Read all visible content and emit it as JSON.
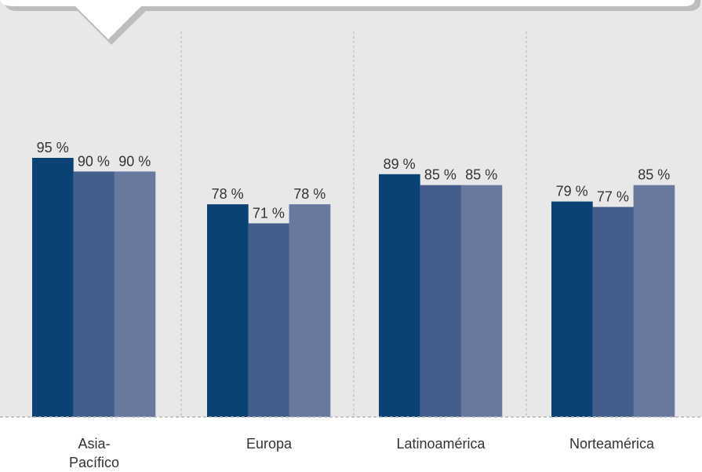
{
  "colors": {
    "panel": "#e8e8e8",
    "callout": "#ffffff",
    "callout_shadow": "#bdbdbd",
    "divider": "#b5b5b5",
    "text": "#333333",
    "series": [
      "#0a4276",
      "#435e8b",
      "#68789e"
    ]
  },
  "chart_data": {
    "type": "bar",
    "title": "",
    "xlabel": "",
    "ylabel": "",
    "ylim": [
      0,
      100
    ],
    "grid": false,
    "legend": "none",
    "categories": [
      [
        "Asia-",
        "Pacífico"
      ],
      [
        "Europa"
      ],
      [
        "Latinoamérica"
      ],
      [
        "Norteamérica"
      ]
    ],
    "series": [
      {
        "values": [
          95,
          78,
          89,
          79
        ],
        "labels": [
          "95 %",
          "78 %",
          "89 %",
          "79 %"
        ]
      },
      {
        "values": [
          90,
          71,
          85,
          77
        ],
        "labels": [
          "90 %",
          "71 %",
          "85 %",
          "77 %"
        ]
      },
      {
        "values": [
          90,
          78,
          85,
          85
        ],
        "labels": [
          "90 %",
          "78 %",
          "85 %",
          "85 %"
        ]
      }
    ]
  }
}
